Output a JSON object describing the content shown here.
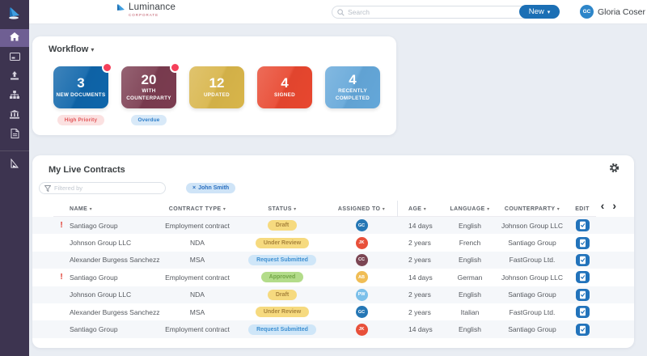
{
  "topbar": {
    "brand_name": "Luminance",
    "brand_sub": "CORPORATE",
    "search_placeholder": "Search",
    "new_label": "New",
    "user_initials": "GC",
    "user_name": "Gloria Coser"
  },
  "sidebar": {
    "items": [
      {
        "icon": "home-icon",
        "active": true
      },
      {
        "icon": "panel-icon",
        "active": false
      },
      {
        "icon": "upload-icon",
        "active": false
      },
      {
        "icon": "hierarchy-icon",
        "active": false
      },
      {
        "icon": "bank-icon",
        "active": false
      },
      {
        "icon": "document-icon",
        "active": false
      }
    ],
    "footer_icon": "sail-icon"
  },
  "workflow": {
    "title": "Workflow",
    "cards": [
      {
        "count": "3",
        "label": "NEW DOCUMENTS",
        "color": "#0e65aa",
        "dot": true,
        "badge": {
          "text": "High Priority",
          "bg": "#fbe1e1",
          "color": "#e25558"
        }
      },
      {
        "count": "20",
        "label": "WITH COUNTERPARTY",
        "color": "#7b3c50",
        "dot": true,
        "badge": {
          "text": "Overdue",
          "bg": "#d8e9f8",
          "color": "#2a7cc9"
        }
      },
      {
        "count": "12",
        "label": "UPDATED",
        "color": "#d8b54a",
        "dot": false,
        "badge": null
      },
      {
        "count": "4",
        "label": "SIGNED",
        "color": "#e8472f",
        "dot": false,
        "badge": null
      },
      {
        "count": "4",
        "label": "RECENTLY COMPLETED",
        "color": "#64a7d9",
        "dot": false,
        "badge": null
      }
    ]
  },
  "contracts": {
    "title": "My Live Contracts",
    "filter_placeholder": "Filtered by",
    "filter_chip": "John Smith",
    "columns": [
      "NAME",
      "CONTRACT TYPE",
      "STATUS",
      "ASSIGNED TO",
      "AGE",
      "LANGUAGE",
      "COUNTERPARTY",
      "EDIT"
    ],
    "rows": [
      {
        "urgent": true,
        "name": "Santiago Group",
        "type": "Employment contract",
        "status": "Draft",
        "status_style": "yellow",
        "assignee_initials": "GC",
        "assignee_color": "#2577b5",
        "age": "14 days",
        "language": "English",
        "counterparty": "Johnson Group LLC"
      },
      {
        "urgent": false,
        "name": "Johnson Group LLC",
        "type": "NDA",
        "status": "Under Review",
        "status_style": "yellow",
        "assignee_initials": "JK",
        "assignee_color": "#e8503a",
        "age": "2 years",
        "language": "French",
        "counterparty": "Santiago Group"
      },
      {
        "urgent": false,
        "name": "Alexander Burgess Sanchezz",
        "type": "MSA",
        "status": "Request Submitted",
        "status_style": "blue",
        "assignee_initials": "CC",
        "assignee_color": "#7b4553",
        "age": "2 years",
        "language": "English",
        "counterparty": "FastGroup Ltd."
      },
      {
        "urgent": true,
        "name": "Santiago Group",
        "type": "Employment contract",
        "status": "Approved",
        "status_style": "green",
        "assignee_initials": "AB",
        "assignee_color": "#f0bd55",
        "age": "14 days",
        "language": "German",
        "counterparty": "Johnson Group LLC"
      },
      {
        "urgent": false,
        "name": "Johnson Group LLC",
        "type": "NDA",
        "status": "Draft",
        "status_style": "yellow",
        "assignee_initials": "PW",
        "assignee_color": "#7cc0ea",
        "age": "2 years",
        "language": "English",
        "counterparty": "Santiago Group"
      },
      {
        "urgent": false,
        "name": "Alexander Burgess Sanchezz",
        "type": "MSA",
        "status": "Under Review",
        "status_style": "yellow",
        "assignee_initials": "GC",
        "assignee_color": "#2577b5",
        "age": "2 years",
        "language": "Italian",
        "counterparty": "FastGroup Ltd."
      },
      {
        "urgent": false,
        "name": "Santiago Group",
        "type": "Employment contract",
        "status": "Request Submitted",
        "status_style": "blue",
        "assignee_initials": "JK",
        "assignee_color": "#e8503a",
        "age": "14 days",
        "language": "English",
        "counterparty": "Santiago Group"
      }
    ]
  },
  "glyphs": {
    "caret": "▾",
    "chevron_left": "‹",
    "chevron_right": "›",
    "urgent": "!",
    "chip_remove": "×"
  }
}
